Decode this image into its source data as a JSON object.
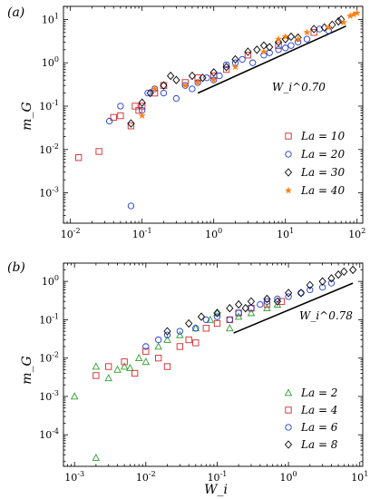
{
  "chart_data": [
    {
      "type": "scatter",
      "panel_label": "(a)",
      "xlabel": "",
      "ylabel": "m_G",
      "xscale": "log",
      "yscale": "log",
      "xlim": [
        0.008,
        120
      ],
      "ylim": [
        0.0002,
        20
      ],
      "xtick_labels": [
        "10^-2",
        "10^-1",
        "10^0",
        "10^1",
        "10^2"
      ],
      "ytick_labels": [
        "10^-3",
        "10^-2",
        "10^-1",
        "10^0",
        "10^1"
      ],
      "legend_position": "lower-right",
      "annotation": {
        "text": "W_i^0.70",
        "exponent": 0.7,
        "line_x": [
          0.6,
          70
        ],
        "line_y": [
          0.2,
          7
        ]
      },
      "series": [
        {
          "name": "La = 10",
          "marker": "square",
          "color": "#d62728",
          "points": [
            [
              0.013,
              0.0065
            ],
            [
              0.025,
              0.009
            ],
            [
              0.04,
              0.055
            ],
            [
              0.05,
              0.06
            ],
            [
              0.07,
              0.035
            ],
            [
              0.08,
              0.1
            ],
            [
              0.09,
              0.08
            ],
            [
              0.1,
              0.1
            ],
            [
              0.15,
              0.2
            ],
            [
              0.2,
              0.3
            ],
            [
              0.4,
              0.35
            ],
            [
              0.6,
              0.45
            ],
            [
              1.0,
              0.5
            ],
            [
              1.5,
              0.7
            ],
            [
              3.0,
              1.5
            ],
            [
              8.0,
              2.5
            ],
            [
              25,
              5
            ]
          ]
        },
        {
          "name": "La = 20",
          "marker": "circle",
          "color": "#1f3bd6",
          "points": [
            [
              0.035,
              0.045
            ],
            [
              0.05,
              0.1
            ],
            [
              0.07,
              0.0005
            ],
            [
              0.1,
              0.08
            ],
            [
              0.12,
              0.2
            ],
            [
              0.15,
              0.25
            ],
            [
              0.2,
              0.2
            ],
            [
              0.3,
              0.15
            ],
            [
              0.4,
              0.3
            ],
            [
              0.5,
              0.25
            ],
            [
              0.6,
              0.35
            ],
            [
              0.8,
              0.45
            ],
            [
              1.0,
              0.4
            ],
            [
              1.2,
              0.5
            ],
            [
              1.5,
              0.9
            ],
            [
              2.0,
              1.0
            ],
            [
              2.5,
              1.2
            ],
            [
              3.5,
              1.0
            ],
            [
              5.0,
              1.5
            ],
            [
              6.0,
              1.7
            ],
            [
              8.0,
              2.0
            ],
            [
              10,
              2.2
            ],
            [
              12,
              2.5
            ],
            [
              15,
              3.0
            ],
            [
              20,
              3.5
            ],
            [
              30,
              6.0
            ],
            [
              40,
              5.5
            ]
          ]
        },
        {
          "name": "La = 30",
          "marker": "diamond",
          "color": "#000000",
          "points": [
            [
              0.07,
              0.04
            ],
            [
              0.1,
              0.12
            ],
            [
              0.13,
              0.2
            ],
            [
              0.2,
              0.3
            ],
            [
              0.25,
              0.5
            ],
            [
              0.3,
              0.4
            ],
            [
              0.5,
              0.5
            ],
            [
              0.7,
              0.45
            ],
            [
              1.0,
              0.6
            ],
            [
              1.5,
              0.8
            ],
            [
              2.0,
              1.2
            ],
            [
              3.0,
              1.8
            ],
            [
              4.0,
              2.0
            ],
            [
              5.0,
              2.5
            ],
            [
              6.0,
              2.3
            ],
            [
              8.0,
              3.0
            ],
            [
              10,
              3.5
            ],
            [
              12,
              4.0
            ],
            [
              15,
              3.8
            ],
            [
              25,
              6.0
            ],
            [
              35,
              6.5
            ],
            [
              45,
              7.5
            ],
            [
              55,
              9.0
            ],
            [
              60,
              10
            ]
          ]
        },
        {
          "name": "La = 40",
          "marker": "star",
          "color": "#ff7f0e",
          "points": [
            [
              0.1,
              0.06
            ],
            [
              0.15,
              0.25
            ],
            [
              0.4,
              0.3
            ],
            [
              0.6,
              0.35
            ],
            [
              1.0,
              0.4
            ],
            [
              2.0,
              0.8
            ],
            [
              5.0,
              1.8
            ],
            [
              8.0,
              3.5
            ],
            [
              10,
              4.0
            ],
            [
              15,
              3.5
            ],
            [
              20,
              5.0
            ],
            [
              40,
              6.5
            ],
            [
              65,
              8.5
            ],
            [
              80,
              12
            ],
            [
              90,
              13
            ],
            [
              100,
              14
            ]
          ]
        }
      ]
    },
    {
      "type": "scatter",
      "panel_label": "(b)",
      "xlabel": "W_i",
      "ylabel": "m_G",
      "xscale": "log",
      "yscale": "log",
      "xlim": [
        0.0007,
        11
      ],
      "ylim": [
        1.5e-05,
        3
      ],
      "xtick_labels": [
        "10^-3",
        "10^-2",
        "10^-1",
        "10^0",
        "10^1"
      ],
      "ytick_labels": [
        "10^-4",
        "10^-3",
        "10^-2",
        "10^-1",
        "10^0"
      ],
      "legend_position": "lower-right",
      "annotation": {
        "text": "W_i^0.78",
        "exponent": 0.78,
        "line_x": [
          0.17,
          8
        ],
        "line_y": [
          0.045,
          0.9
        ]
      },
      "series": [
        {
          "name": "La = 2",
          "marker": "triangle",
          "color": "#2ca02c",
          "points": [
            [
              0.001,
              0.001
            ],
            [
              0.002,
              2.5e-05
            ],
            [
              0.002,
              0.006
            ],
            [
              0.003,
              0.003
            ],
            [
              0.004,
              0.005
            ],
            [
              0.005,
              0.006
            ],
            [
              0.006,
              0.0055
            ],
            [
              0.008,
              0.01
            ],
            [
              0.01,
              0.008
            ],
            [
              0.015,
              0.02
            ],
            [
              0.02,
              0.03
            ],
            [
              0.03,
              0.04
            ],
            [
              0.05,
              0.06
            ],
            [
              0.08,
              0.1
            ],
            [
              0.1,
              0.15
            ],
            [
              0.15,
              0.06
            ],
            [
              0.2,
              0.12
            ],
            [
              0.3,
              0.15
            ],
            [
              0.5,
              0.2
            ],
            [
              0.7,
              0.25
            ]
          ]
        },
        {
          "name": "La = 4",
          "marker": "square",
          "color": "#d62728",
          "points": [
            [
              0.002,
              0.0035
            ],
            [
              0.003,
              0.006
            ],
            [
              0.005,
              0.008
            ],
            [
              0.007,
              0.004
            ],
            [
              0.01,
              0.015
            ],
            [
              0.015,
              0.01
            ],
            [
              0.02,
              0.006
            ],
            [
              0.03,
              0.02
            ],
            [
              0.04,
              0.03
            ],
            [
              0.05,
              0.025
            ],
            [
              0.07,
              0.06
            ],
            [
              0.1,
              0.08
            ],
            [
              0.15,
              0.1
            ],
            [
              0.2,
              0.15
            ],
            [
              0.3,
              0.2
            ],
            [
              0.5,
              0.25
            ],
            [
              0.8,
              0.3
            ]
          ]
        },
        {
          "name": "La = 6",
          "marker": "circle",
          "color": "#1f3bd6",
          "points": [
            [
              0.01,
              0.02
            ],
            [
              0.015,
              0.03
            ],
            [
              0.02,
              0.04
            ],
            [
              0.03,
              0.05
            ],
            [
              0.05,
              0.06
            ],
            [
              0.07,
              0.1
            ],
            [
              0.1,
              0.12
            ],
            [
              0.15,
              0.1
            ],
            [
              0.2,
              0.15
            ],
            [
              0.3,
              0.2
            ],
            [
              0.4,
              0.25
            ],
            [
              0.5,
              0.3
            ],
            [
              0.7,
              0.35
            ],
            [
              1.0,
              0.4
            ],
            [
              1.5,
              0.5
            ],
            [
              2.0,
              0.6
            ],
            [
              3.0,
              0.7
            ],
            [
              4.0,
              0.9
            ]
          ]
        },
        {
          "name": "La = 8",
          "marker": "diamond",
          "color": "#000000",
          "points": [
            [
              0.02,
              0.05
            ],
            [
              0.04,
              0.08
            ],
            [
              0.06,
              0.12
            ],
            [
              0.1,
              0.15
            ],
            [
              0.15,
              0.2
            ],
            [
              0.2,
              0.25
            ],
            [
              0.25,
              0.2
            ],
            [
              0.3,
              0.3
            ],
            [
              0.5,
              0.35
            ],
            [
              0.7,
              0.3
            ],
            [
              1.0,
              0.5
            ],
            [
              1.5,
              0.5
            ],
            [
              2.0,
              0.8
            ],
            [
              3.0,
              1.0
            ],
            [
              4.0,
              1.2
            ],
            [
              5.0,
              1.5
            ],
            [
              6.0,
              1.8
            ],
            [
              8.0,
              2.0
            ]
          ]
        }
      ]
    }
  ]
}
